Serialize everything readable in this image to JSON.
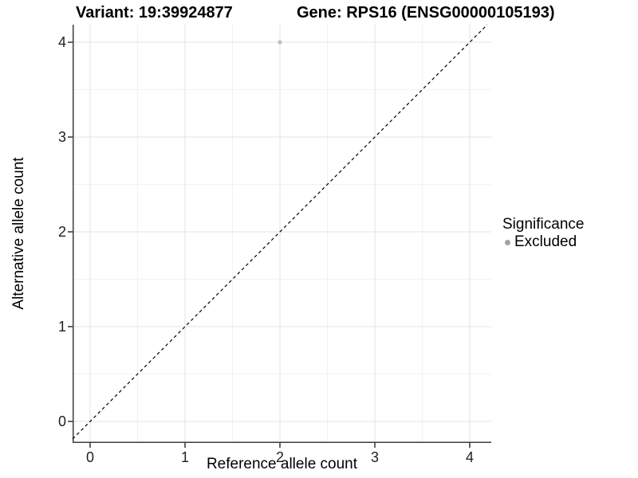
{
  "chart_data": {
    "type": "scatter",
    "titles": {
      "left": "Variant: 19:39924877",
      "right": "Gene: RPS16 (ENSG00000105193)"
    },
    "xlabel": "Reference allele count",
    "ylabel": "Alternative allele count",
    "x_ticks": [
      0,
      1,
      2,
      3,
      4
    ],
    "y_ticks": [
      0,
      1,
      2,
      3,
      4
    ],
    "xlim": [
      -0.185,
      4.227
    ],
    "ylim": [
      -0.227,
      4.185
    ],
    "grid": "major+minor",
    "minor_step": 0.5,
    "points": [
      {
        "x": 2,
        "y": 4,
        "significance": "Excluded"
      }
    ],
    "point_color": "#bfbfbf",
    "reference_line": {
      "kind": "identity",
      "equation": "y = x",
      "style": "dashed",
      "color": "#000000"
    },
    "legend": {
      "title": "Significance",
      "position": "right",
      "entries": [
        {
          "label": "Excluded",
          "color": "#a3a3a3"
        }
      ]
    },
    "colors": {
      "major_grid": "#e3e3e3",
      "minor_grid": "#f2f2f2",
      "axis_line": "#3d3d3d",
      "tick_mark": "#333333"
    }
  }
}
